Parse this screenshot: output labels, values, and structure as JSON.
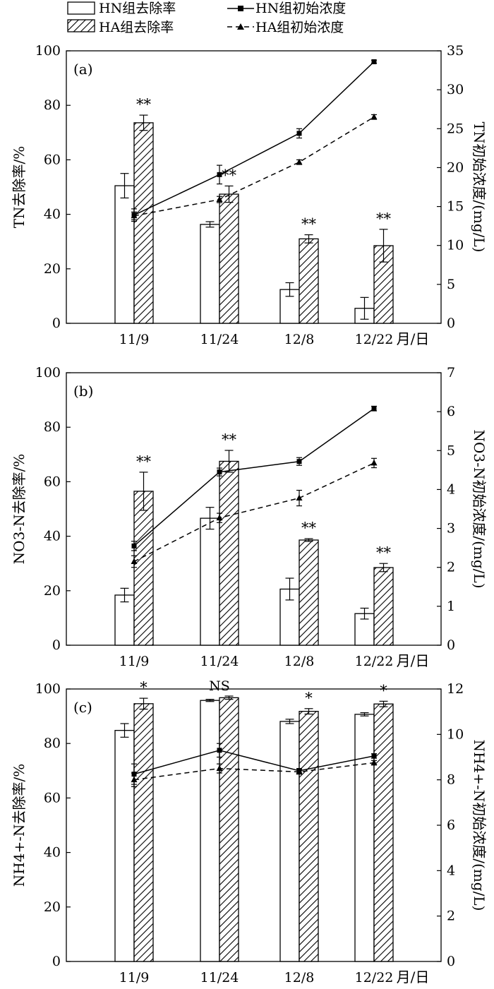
{
  "legend": {
    "items": [
      {
        "label": "HN组去除率",
        "kind": "bar-open"
      },
      {
        "label": "HA组去除率",
        "kind": "bar-hatched"
      },
      {
        "label": "HN组初始浓度",
        "kind": "line-solid-square"
      },
      {
        "label": "HA组初始浓度",
        "kind": "line-dashed-triangle"
      }
    ]
  },
  "chart_data": [
    {
      "type": "bar",
      "panel_label": "(a)",
      "categories": [
        "11/9",
        "11/24",
        "12/8",
        "12/22"
      ],
      "xlabel": "月/日",
      "ylabel": "TN去除率/%",
      "ylim": [
        0,
        100
      ],
      "yticks": [
        0,
        20,
        40,
        60,
        80,
        100
      ],
      "y2label": "TN初始浓度/(mg/L)",
      "y2lim": [
        0,
        35
      ],
      "y2ticks": [
        0,
        5,
        10,
        15,
        20,
        25,
        30,
        35
      ],
      "series": [
        {
          "name": "HN组去除率",
          "type": "bar",
          "axis": "left",
          "values": [
            50.5,
            36.3,
            12.4,
            5.5
          ],
          "errors": [
            4.5,
            1.0,
            2.5,
            4.0
          ]
        },
        {
          "name": "HA组去除率",
          "type": "bar",
          "axis": "left",
          "values": [
            73.6,
            47.4,
            31.0,
            28.5
          ],
          "errors": [
            2.8,
            3.0,
            1.5,
            6.0
          ]
        },
        {
          "name": "HN组初始浓度",
          "type": "line",
          "axis": "right",
          "values": [
            13.9,
            19.1,
            24.4,
            33.6
          ],
          "errors": [
            0.8,
            1.2,
            0.6,
            0.2
          ]
        },
        {
          "name": "HA组初始浓度",
          "type": "line",
          "axis": "right",
          "values": [
            13.8,
            15.9,
            20.7,
            26.5
          ],
          "errors": [
            0.5,
            0.4,
            0.3,
            0.3
          ]
        }
      ],
      "annotations": [
        "**",
        "**",
        "**",
        "**"
      ]
    },
    {
      "type": "bar",
      "panel_label": "(b)",
      "categories": [
        "11/9",
        "11/24",
        "12/8",
        "12/22"
      ],
      "xlabel": "月/日",
      "ylabel": "NO3-N去除率/%",
      "ylim": [
        0,
        100
      ],
      "yticks": [
        0,
        20,
        40,
        60,
        80,
        100
      ],
      "y2label": "NO3-N初始浓度/(mg/L)",
      "y2lim": [
        0,
        7
      ],
      "y2ticks": [
        0,
        1,
        2,
        3,
        4,
        5,
        6,
        7
      ],
      "series": [
        {
          "name": "HN组去除率",
          "type": "bar",
          "axis": "left",
          "values": [
            18.4,
            46.6,
            20.6,
            11.6
          ],
          "errors": [
            2.5,
            4.0,
            4.0,
            2.0
          ]
        },
        {
          "name": "HA组去除率",
          "type": "bar",
          "axis": "left",
          "values": [
            56.5,
            67.5,
            38.6,
            28.5
          ],
          "errors": [
            7.0,
            4.0,
            0.5,
            1.5
          ]
        },
        {
          "name": "HN组初始浓度",
          "type": "line",
          "axis": "right",
          "values": [
            2.55,
            4.45,
            4.72,
            6.08
          ],
          "errors": [
            0.12,
            0.1,
            0.1,
            0.06
          ]
        },
        {
          "name": "HA组初始浓度",
          "type": "line",
          "axis": "right",
          "values": [
            2.15,
            3.27,
            3.78,
            4.68
          ],
          "errors": [
            0.15,
            0.12,
            0.2,
            0.12
          ]
        }
      ],
      "annotations": [
        "**",
        "**",
        "**",
        "**"
      ]
    },
    {
      "type": "bar",
      "panel_label": "(c)",
      "categories": [
        "11/9",
        "11/24",
        "12/8",
        "12/22"
      ],
      "xlabel": "月/日",
      "ylabel": "NH4+-N去除率/%",
      "ylim": [
        0,
        100
      ],
      "yticks": [
        0,
        20,
        40,
        60,
        80,
        100
      ],
      "y2label": "NH4+-N初始浓度/(mg/L)",
      "y2lim": [
        0,
        12
      ],
      "y2ticks": [
        0,
        2,
        4,
        6,
        8,
        10,
        12
      ],
      "series": [
        {
          "name": "HN组去除率",
          "type": "bar",
          "axis": "left",
          "values": [
            84.8,
            95.8,
            88.1,
            90.7
          ],
          "errors": [
            2.5,
            0.4,
            0.8,
            0.6
          ]
        },
        {
          "name": "HA组去除率",
          "type": "bar",
          "axis": "left",
          "values": [
            94.6,
            96.8,
            91.8,
            94.5
          ],
          "errors": [
            2.0,
            0.6,
            1.0,
            1.0
          ]
        },
        {
          "name": "HN组初始浓度",
          "type": "line",
          "axis": "right",
          "values": [
            8.25,
            9.3,
            8.4,
            9.05
          ],
          "errors": [
            0.45,
            0.3,
            0.1,
            0.1
          ]
        },
        {
          "name": "HA组初始浓度",
          "type": "line",
          "axis": "right",
          "values": [
            8.0,
            8.5,
            8.35,
            8.75
          ],
          "errors": [
            0.3,
            0.2,
            0.1,
            0.1
          ]
        }
      ],
      "annotations": [
        "*",
        "NS",
        "*",
        "*"
      ]
    }
  ]
}
